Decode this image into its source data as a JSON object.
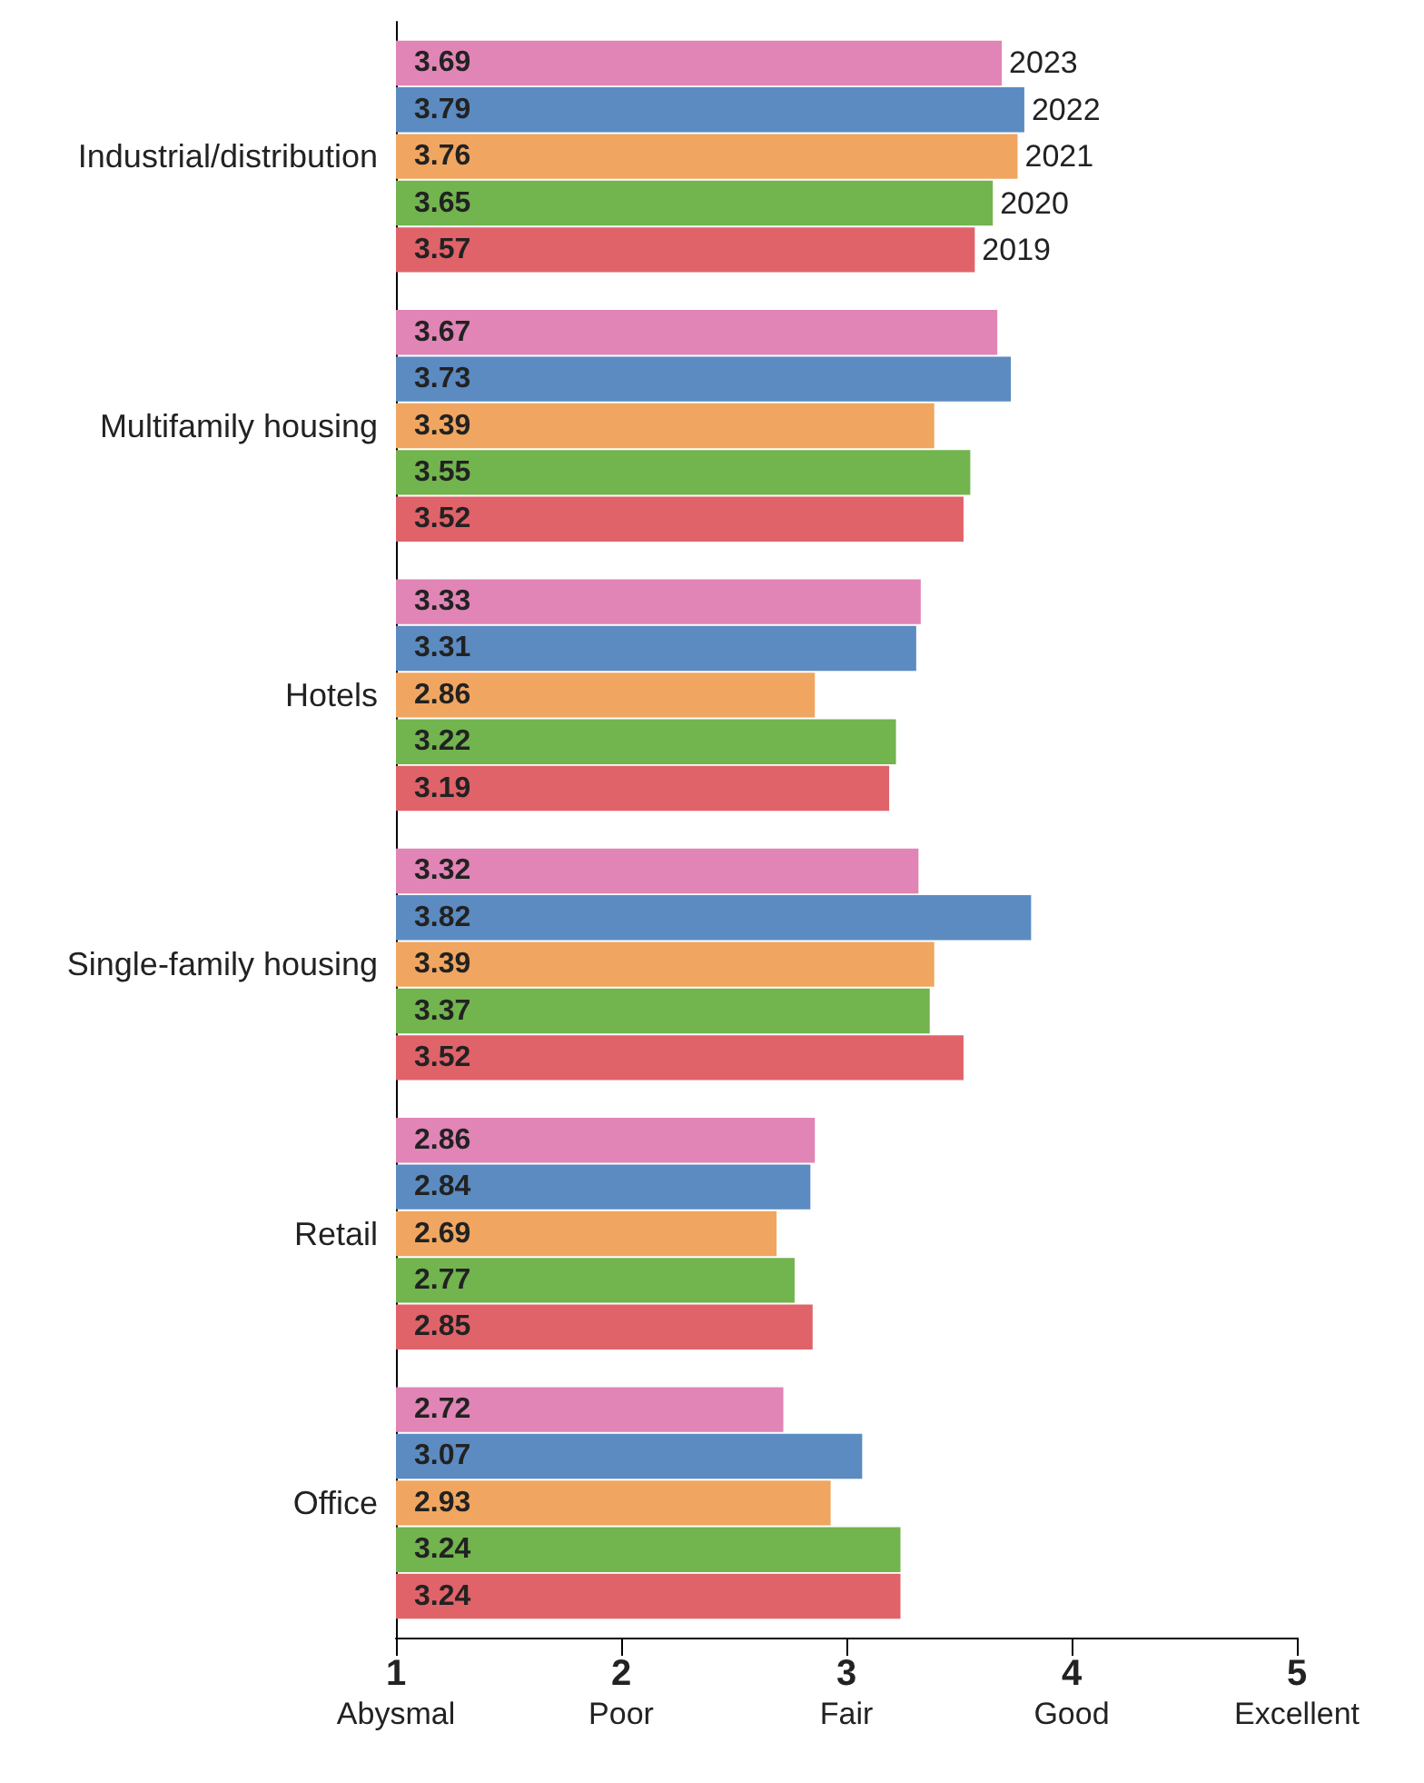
{
  "chart_data": {
    "type": "bar",
    "orientation": "horizontal",
    "categories": [
      "Industrial/distribution",
      "Multifamily housing",
      "Hotels",
      "Single-family housing",
      "Retail",
      "Office"
    ],
    "series": [
      {
        "name": "2023",
        "color": "#e085b5",
        "values": [
          3.69,
          3.67,
          3.33,
          3.32,
          2.86,
          2.72
        ]
      },
      {
        "name": "2022",
        "color": "#5b8bc0",
        "values": [
          3.79,
          3.73,
          3.31,
          3.82,
          2.84,
          3.07
        ]
      },
      {
        "name": "2021",
        "color": "#f0a660",
        "values": [
          3.76,
          3.39,
          2.86,
          3.39,
          2.69,
          2.93
        ]
      },
      {
        "name": "2020",
        "color": "#72b44e",
        "values": [
          3.65,
          3.55,
          3.22,
          3.37,
          2.77,
          3.24
        ]
      },
      {
        "name": "2019",
        "color": "#e0636a",
        "values": [
          3.57,
          3.52,
          3.19,
          3.52,
          2.85,
          3.24
        ]
      }
    ],
    "xlim": [
      1,
      5
    ],
    "xticks": [
      {
        "value": 1,
        "label": "1\nAbysmal"
      },
      {
        "value": 2,
        "label": "2\nPoor"
      },
      {
        "value": 3,
        "label": "3\nFair"
      },
      {
        "value": 4,
        "label": "4\nGood"
      },
      {
        "value": 5,
        "label": "5\nExcellent"
      }
    ],
    "data_labels": true,
    "grid": false,
    "legend": false
  }
}
